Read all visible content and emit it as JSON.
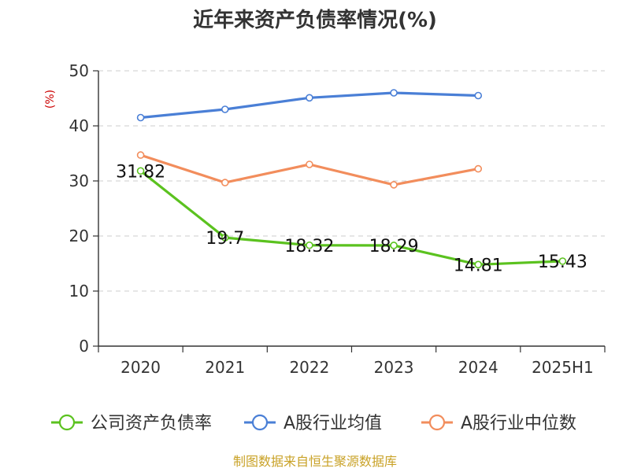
{
  "chart_data": {
    "type": "line",
    "title": "近年来资产负债率情况(%)",
    "ylabel": "(%)",
    "xlabel": "",
    "categories": [
      "2020",
      "2021",
      "2022",
      "2023",
      "2024",
      "2025H1"
    ],
    "ylim": [
      0,
      50
    ],
    "yticks": [
      0,
      10,
      20,
      30,
      40,
      50
    ],
    "grid": true,
    "legend_position": "bottom",
    "series": [
      {
        "name": "公司资产负债率",
        "color": "#5bc21f",
        "values": [
          31.82,
          19.7,
          18.32,
          18.29,
          14.81,
          15.43
        ],
        "labels": [
          "31.82",
          "19.7",
          "18.32",
          "18.29",
          "14.81",
          "15.43"
        ]
      },
      {
        "name": "A股行业均值",
        "color": "#4a7fd6",
        "values": [
          41.5,
          43.0,
          45.1,
          46.0,
          45.5,
          null
        ]
      },
      {
        "name": "A股行业中位数",
        "color": "#f28d5c",
        "values": [
          34.7,
          29.7,
          33.0,
          29.3,
          32.2,
          null
        ]
      }
    ]
  },
  "source": "制图数据来自恒生聚源数据库"
}
